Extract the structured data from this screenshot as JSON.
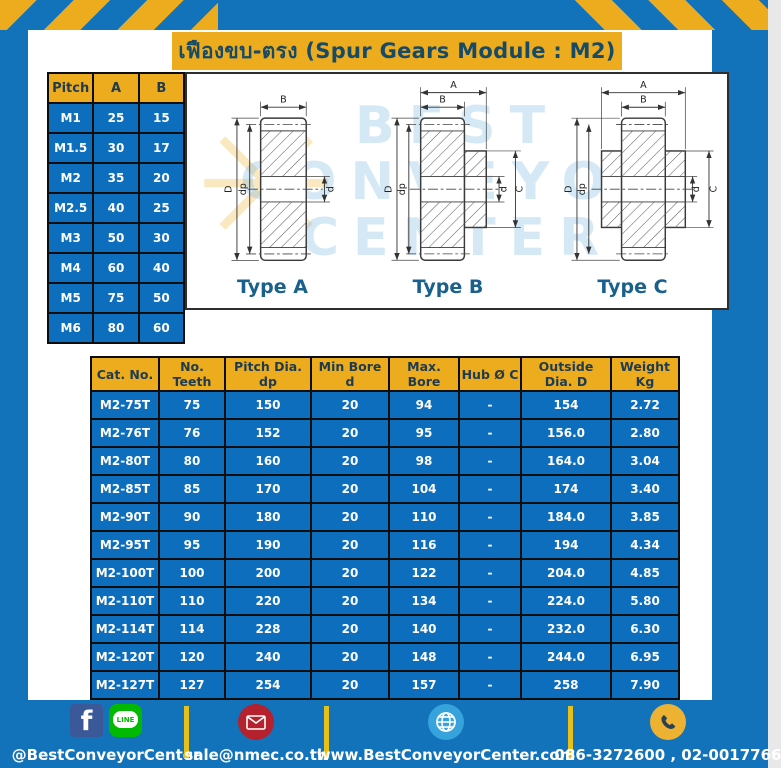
{
  "title": "เฟืองขบ-ตรง (Spur Gears Module : M2)",
  "pitch_table": {
    "headers": [
      "Pitch",
      "A",
      "B"
    ],
    "rows": [
      [
        "M1",
        "25",
        "15"
      ],
      [
        "M1.5",
        "30",
        "17"
      ],
      [
        "M2",
        "35",
        "20"
      ],
      [
        "M2.5",
        "40",
        "25"
      ],
      [
        "M3",
        "50",
        "30"
      ],
      [
        "M4",
        "60",
        "40"
      ],
      [
        "M5",
        "75",
        "50"
      ],
      [
        "M6",
        "80",
        "60"
      ]
    ]
  },
  "drawings": {
    "watermark_line1": "BEST",
    "watermark_line2": "CONVEYOR",
    "watermark_line3": "CENTER",
    "watermark_star": "✳",
    "type_a": {
      "label": "Type A",
      "dim_top": "B",
      "dim_left_outer": "D",
      "dim_left_inner": "dp",
      "dim_right": "d"
    },
    "type_b": {
      "label": "Type B",
      "dim_top_outer": "A",
      "dim_top_inner": "B",
      "dim_left_outer": "D",
      "dim_left_inner": "dp",
      "dim_right_inner": "d",
      "dim_right_outer": "C"
    },
    "type_c": {
      "label": "Type C",
      "dim_top_outer": "A",
      "dim_top_inner": "B",
      "dim_left_outer": "D",
      "dim_left_inner": "dp",
      "dim_right_inner": "d",
      "dim_right_outer": "C"
    }
  },
  "spec_table": {
    "headers": [
      "Cat. No.",
      "No. Teeth",
      "Pitch Dia. dp",
      "Min Bore d",
      "Max. Bore",
      "Hub Ø C",
      "Outside Dia. D",
      "Weight Kg"
    ],
    "rows": [
      [
        "M2-75T",
        "75",
        "150",
        "20",
        "94",
        "-",
        "154",
        "2.72"
      ],
      [
        "M2-76T",
        "76",
        "152",
        "20",
        "95",
        "-",
        "156.0",
        "2.80"
      ],
      [
        "M2-80T",
        "80",
        "160",
        "20",
        "98",
        "-",
        "164.0",
        "3.04"
      ],
      [
        "M2-85T",
        "85",
        "170",
        "20",
        "104",
        "-",
        "174",
        "3.40"
      ],
      [
        "M2-90T",
        "90",
        "180",
        "20",
        "110",
        "-",
        "184.0",
        "3.85"
      ],
      [
        "M2-95T",
        "95",
        "190",
        "20",
        "116",
        "-",
        "194",
        "4.34"
      ],
      [
        "M2-100T",
        "100",
        "200",
        "20",
        "122",
        "-",
        "204.0",
        "4.85"
      ],
      [
        "M2-110T",
        "110",
        "220",
        "20",
        "134",
        "-",
        "224.0",
        "5.80"
      ],
      [
        "M2-114T",
        "114",
        "228",
        "20",
        "140",
        "-",
        "232.0",
        "6.30"
      ],
      [
        "M2-120T",
        "120",
        "240",
        "20",
        "148",
        "-",
        "244.0",
        "6.95"
      ],
      [
        "M2-127T",
        "127",
        "254",
        "20",
        "157",
        "-",
        "258",
        "7.90"
      ]
    ]
  },
  "footer": {
    "facebook_letter": "f",
    "line_label": "LINE",
    "social": "@BestConveyorCenter",
    "email": "sale@nmec.co.th",
    "website": "www.BestConveyorCenter.com",
    "phone": "086-3272600 , 02-0017766"
  },
  "colors": {
    "blue": "#1273bb",
    "cell_blue": "#0d6ebd",
    "yellow": "#edac1e",
    "header_text": "#1e3b50",
    "title_text": "#174a66"
  }
}
